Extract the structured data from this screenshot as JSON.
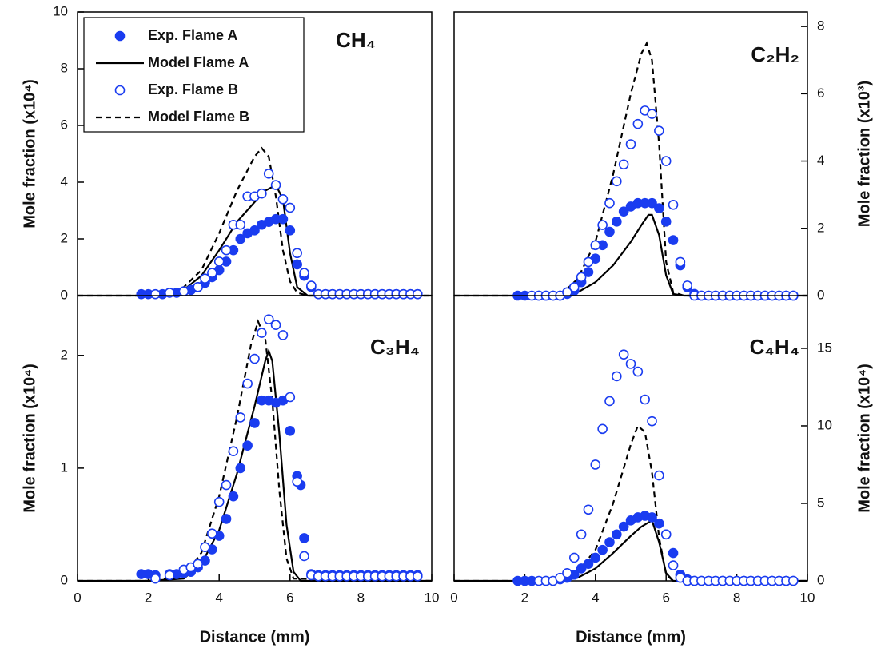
{
  "chart_data": [
    {
      "type": "line",
      "title": "CH₄",
      "ylabel": "Mole fraction (x10⁴)",
      "yaxis": "left",
      "legend": "upper left",
      "xlim": [
        0,
        10
      ],
      "ylim": [
        0,
        10
      ],
      "yticks": [
        0,
        2,
        4,
        6,
        8,
        10
      ],
      "series": [
        {
          "name": "Exp. Flame A",
          "color": "#1a3cf0",
          "style": "marker-filled",
          "x": [
            1.8,
            2.0,
            2.4,
            2.8,
            3.0,
            3.2,
            3.4,
            3.6,
            3.8,
            4.0,
            4.2,
            4.4,
            4.6,
            4.8,
            5.0,
            5.2,
            5.4,
            5.6,
            5.8,
            6.0,
            6.2,
            6.4,
            6.6,
            6.8,
            7.0,
            7.2,
            7.4,
            7.6,
            7.8,
            8.0,
            8.2,
            8.4,
            8.6,
            8.8,
            9.0,
            9.2,
            9.4,
            9.6
          ],
          "values": [
            0.05,
            0.05,
            0.05,
            0.1,
            0.15,
            0.2,
            0.3,
            0.45,
            0.65,
            0.9,
            1.2,
            1.6,
            2.0,
            2.2,
            2.3,
            2.5,
            2.6,
            2.7,
            2.7,
            2.3,
            1.1,
            0.7,
            0.3,
            0.05,
            0.05,
            0.05,
            0.05,
            0.05,
            0.05,
            0.05,
            0.05,
            0.05,
            0.05,
            0.05,
            0.05,
            0.05,
            0.05,
            0.05
          ]
        },
        {
          "name": "Model Flame A",
          "color": "#000000",
          "style": "line-solid",
          "x": [
            0,
            2,
            2.5,
            3,
            3.5,
            4,
            4.5,
            5,
            5.3,
            5.6,
            5.8,
            6.0,
            6.2,
            6.5,
            10
          ],
          "values": [
            0,
            0,
            0.05,
            0.2,
            0.7,
            1.6,
            2.6,
            3.3,
            3.7,
            3.9,
            3.4,
            1.5,
            0.3,
            0,
            0
          ]
        },
        {
          "name": "Exp. Flame B",
          "color": "#1a3cf0",
          "style": "marker-open",
          "x": [
            2.2,
            2.6,
            3.0,
            3.4,
            3.6,
            3.8,
            4.0,
            4.2,
            4.4,
            4.6,
            4.8,
            5.0,
            5.2,
            5.4,
            5.6,
            5.8,
            6.0,
            6.2,
            6.4,
            6.6,
            6.8,
            7.0,
            7.2,
            7.4,
            7.6,
            7.8,
            8.0,
            8.2,
            8.4,
            8.6,
            8.8,
            9.0,
            9.2,
            9.4,
            9.6
          ],
          "values": [
            0.05,
            0.1,
            0.15,
            0.3,
            0.6,
            0.8,
            1.2,
            1.6,
            2.5,
            2.5,
            3.5,
            3.5,
            3.6,
            4.3,
            3.9,
            3.4,
            3.1,
            1.5,
            0.8,
            0.35,
            0.05,
            0.05,
            0.05,
            0.05,
            0.05,
            0.05,
            0.05,
            0.05,
            0.05,
            0.05,
            0.05,
            0.05,
            0.05,
            0.05,
            0.05
          ]
        },
        {
          "name": "Model Flame B",
          "color": "#000000",
          "style": "line-dashed",
          "x": [
            0,
            2,
            2.5,
            3,
            3.5,
            4,
            4.5,
            5,
            5.2,
            5.4,
            5.6,
            5.8,
            6.0,
            6.2,
            6.5,
            10
          ],
          "values": [
            0,
            0,
            0.05,
            0.3,
            0.9,
            2.2,
            3.7,
            4.9,
            5.2,
            4.9,
            3.5,
            1.6,
            0.5,
            0.1,
            0,
            0
          ]
        }
      ]
    },
    {
      "type": "line",
      "title": "C₂H₂",
      "ylabel": "Mole fraction (x10³)",
      "yaxis": "right",
      "xlim": [
        0,
        10
      ],
      "ylim": [
        0,
        8.43
      ],
      "yticks": [
        0,
        2,
        4,
        6,
        8
      ],
      "series": [
        {
          "color": "#1a3cf0",
          "style": "marker-filled",
          "x": [
            1.8,
            2.0,
            2.4,
            2.6,
            2.8,
            3.0,
            3.2,
            3.4,
            3.6,
            3.8,
            4.0,
            4.2,
            4.4,
            4.6,
            4.8,
            5.0,
            5.2,
            5.4,
            5.6,
            5.8,
            6.0,
            6.2,
            6.4,
            6.6,
            6.8,
            7.0,
            7.2,
            7.4,
            7.6,
            7.8,
            8.0,
            8.2,
            8.4,
            8.6,
            8.8,
            9.0,
            9.2,
            9.4,
            9.6
          ],
          "values": [
            0,
            0,
            0,
            0,
            0,
            0,
            0.05,
            0.15,
            0.4,
            0.7,
            1.1,
            1.5,
            1.9,
            2.2,
            2.5,
            2.65,
            2.75,
            2.75,
            2.75,
            2.6,
            2.2,
            1.65,
            0.9,
            0.25,
            0.05,
            0,
            0,
            0,
            0,
            0,
            0,
            0,
            0,
            0,
            0,
            0,
            0,
            0,
            0
          ]
        },
        {
          "color": "#000000",
          "style": "line-solid",
          "x": [
            0,
            3,
            3.5,
            4,
            4.5,
            5,
            5.3,
            5.5,
            5.6,
            5.8,
            6.0,
            6.2,
            6.5,
            10
          ],
          "values": [
            0,
            0,
            0.1,
            0.4,
            0.9,
            1.6,
            2.1,
            2.4,
            2.4,
            1.8,
            0.6,
            0.05,
            0,
            0
          ]
        },
        {
          "color": "#1a3cf0",
          "style": "marker-open",
          "x": [
            2.2,
            2.4,
            2.6,
            2.8,
            3.0,
            3.2,
            3.4,
            3.6,
            3.8,
            4.0,
            4.2,
            4.4,
            4.6,
            4.8,
            5.0,
            5.2,
            5.4,
            5.6,
            5.8,
            6.0,
            6.2,
            6.4,
            6.6,
            6.8,
            7.0,
            7.2,
            7.4,
            7.6,
            7.8,
            8.0,
            8.2,
            8.4,
            8.6,
            8.8,
            9.0,
            9.2,
            9.4,
            9.6
          ],
          "values": [
            0,
            0,
            0,
            0,
            0,
            0.1,
            0.25,
            0.55,
            1.0,
            1.5,
            2.1,
            2.75,
            3.4,
            3.9,
            4.5,
            5.1,
            5.5,
            5.4,
            4.9,
            4.0,
            2.7,
            1.0,
            0.3,
            0,
            0,
            0,
            0,
            0,
            0,
            0,
            0,
            0,
            0,
            0,
            0,
            0,
            0,
            0
          ]
        },
        {
          "color": "#000000",
          "style": "line-dashed",
          "x": [
            0,
            3,
            3.5,
            4,
            4.5,
            5,
            5.3,
            5.45,
            5.6,
            5.8,
            6.0,
            6.2,
            6.5,
            10
          ],
          "values": [
            0,
            0,
            0.5,
            1.6,
            3.6,
            6.0,
            7.2,
            7.5,
            7.0,
            4.5,
            1.0,
            0.1,
            0,
            0
          ]
        }
      ]
    },
    {
      "type": "line",
      "title": "C₃H₄",
      "ylabel": "Mole fraction (x10⁴)",
      "xlabel": "Distance (mm)",
      "yaxis": "left",
      "xlim": [
        0,
        10
      ],
      "xticks": [
        0,
        2,
        4,
        6,
        8,
        10
      ],
      "ylim": [
        0,
        2.53
      ],
      "yticks": [
        0,
        1,
        2
      ],
      "series": [
        {
          "color": "#1a3cf0",
          "style": "marker-filled",
          "x": [
            1.8,
            2.0,
            2.2,
            2.6,
            2.8,
            3.0,
            3.2,
            3.4,
            3.6,
            3.8,
            4.0,
            4.2,
            4.4,
            4.6,
            4.8,
            5.0,
            5.2,
            5.4,
            5.6,
            5.8,
            6.0,
            6.2,
            6.3,
            6.4,
            6.6,
            6.8,
            7.0,
            7.2,
            7.4,
            7.6,
            7.8,
            8.0,
            8.2,
            8.4,
            8.6,
            8.8,
            9.0,
            9.2,
            9.4,
            9.6
          ],
          "values": [
            0.06,
            0.06,
            0.05,
            0.06,
            0.06,
            0.07,
            0.08,
            0.12,
            0.18,
            0.28,
            0.4,
            0.55,
            0.75,
            1.0,
            1.2,
            1.4,
            1.6,
            1.6,
            1.58,
            1.6,
            1.33,
            0.93,
            0.85,
            0.38,
            0.06,
            0.05,
            0.05,
            0.05,
            0.05,
            0.05,
            0.05,
            0.05,
            0.05,
            0.05,
            0.05,
            0.05,
            0.05,
            0.05,
            0.05,
            0.05
          ]
        },
        {
          "color": "#000000",
          "style": "line-solid",
          "x": [
            0,
            2,
            3,
            3.5,
            4,
            4.5,
            5,
            5.3,
            5.4,
            5.5,
            5.7,
            5.9,
            6.1,
            6.3,
            10
          ],
          "values": [
            0,
            0,
            0.02,
            0.15,
            0.45,
            0.95,
            1.55,
            1.95,
            2.04,
            1.95,
            1.3,
            0.5,
            0.08,
            0,
            0
          ]
        },
        {
          "color": "#1a3cf0",
          "style": "marker-open",
          "x": [
            2.2,
            2.6,
            3.0,
            3.2,
            3.4,
            3.6,
            3.8,
            4.0,
            4.2,
            4.4,
            4.6,
            4.8,
            5.0,
            5.2,
            5.4,
            5.6,
            5.8,
            6.0,
            6.2,
            6.4,
            6.6,
            6.8,
            7.0,
            7.2,
            7.4,
            7.6,
            7.8,
            8.0,
            8.2,
            8.4,
            8.6,
            8.8,
            9.0,
            9.2,
            9.4,
            9.6
          ],
          "values": [
            0.02,
            0.05,
            0.1,
            0.12,
            0.15,
            0.3,
            0.42,
            0.7,
            0.85,
            1.15,
            1.45,
            1.75,
            1.97,
            2.2,
            2.32,
            2.27,
            2.18,
            1.63,
            0.88,
            0.22,
            0.05,
            0.04,
            0.04,
            0.04,
            0.04,
            0.04,
            0.04,
            0.04,
            0.04,
            0.04,
            0.04,
            0.04,
            0.04,
            0.04,
            0.04,
            0.04
          ]
        },
        {
          "color": "#000000",
          "style": "line-dashed",
          "x": [
            0,
            2,
            3,
            3.5,
            4,
            4.5,
            4.9,
            5.1,
            5.3,
            5.5,
            5.7,
            5.9,
            6.1,
            10
          ],
          "values": [
            0,
            0,
            0.04,
            0.25,
            0.75,
            1.45,
            2.1,
            2.3,
            2.15,
            1.6,
            0.8,
            0.2,
            0.02,
            0
          ]
        }
      ]
    },
    {
      "type": "line",
      "title": "C₄H₄",
      "ylabel": "Mole fraction (x10⁴)",
      "xlabel": "Distance (mm)",
      "yaxis": "right",
      "xlim": [
        0,
        10
      ],
      "xticks": [
        0,
        2,
        4,
        6,
        8,
        10
      ],
      "ylim": [
        0,
        18.4
      ],
      "yticks": [
        0,
        5,
        10,
        15
      ],
      "series": [
        {
          "color": "#1a3cf0",
          "style": "marker-filled",
          "x": [
            1.8,
            2.0,
            2.2,
            2.6,
            3.0,
            3.2,
            3.4,
            3.6,
            3.8,
            4.0,
            4.2,
            4.4,
            4.6,
            4.8,
            5.0,
            5.2,
            5.4,
            5.6,
            5.8,
            6.0,
            6.2,
            6.4,
            6.6,
            6.8,
            7.0,
            7.2,
            7.4,
            7.6,
            7.8,
            8.0,
            8.2,
            8.4,
            8.6,
            8.8,
            9.0,
            9.2,
            9.4,
            9.6
          ],
          "values": [
            0,
            0,
            0,
            0,
            0.1,
            0.2,
            0.4,
            0.8,
            1.1,
            1.5,
            2.0,
            2.5,
            3.0,
            3.5,
            3.9,
            4.1,
            4.2,
            4.1,
            3.7,
            3.0,
            1.8,
            0.4,
            0.1,
            0,
            0,
            0,
            0,
            0,
            0,
            0,
            0,
            0,
            0,
            0,
            0,
            0,
            0,
            0
          ]
        },
        {
          "color": "#000000",
          "style": "line-solid",
          "x": [
            0,
            3,
            3.5,
            4,
            4.5,
            5,
            5.3,
            5.6,
            5.8,
            6.0,
            6.2,
            10
          ],
          "values": [
            0,
            0,
            0.2,
            0.8,
            1.8,
            2.9,
            3.5,
            3.9,
            2.5,
            0.5,
            0,
            0
          ]
        },
        {
          "color": "#1a3cf0",
          "style": "marker-open",
          "x": [
            2.4,
            2.6,
            2.8,
            3.0,
            3.2,
            3.4,
            3.6,
            3.8,
            4.0,
            4.2,
            4.4,
            4.6,
            4.8,
            5.0,
            5.2,
            5.4,
            5.6,
            5.8,
            6.0,
            6.2,
            6.4,
            6.6,
            6.8,
            7.0,
            7.2,
            7.4,
            7.6,
            7.8,
            8.0,
            8.2,
            8.4,
            8.6,
            8.8,
            9.0,
            9.2,
            9.4,
            9.6
          ],
          "values": [
            0,
            0,
            0,
            0.2,
            0.5,
            1.5,
            3.0,
            4.6,
            7.5,
            9.8,
            11.6,
            13.2,
            14.6,
            14.0,
            13.5,
            11.7,
            10.3,
            6.8,
            3.0,
            1.0,
            0.2,
            0,
            0,
            0,
            0,
            0,
            0,
            0,
            0,
            0,
            0,
            0,
            0,
            0,
            0,
            0,
            0
          ]
        },
        {
          "color": "#000000",
          "style": "line-dashed",
          "x": [
            0,
            3,
            3.5,
            4,
            4.5,
            5,
            5.2,
            5.4,
            5.6,
            5.8,
            6.0,
            6.2,
            10
          ],
          "values": [
            0,
            0,
            0.6,
            2.0,
            5.0,
            8.8,
            10.0,
            9.6,
            7.0,
            2.8,
            0.4,
            0,
            0
          ]
        }
      ]
    }
  ]
}
